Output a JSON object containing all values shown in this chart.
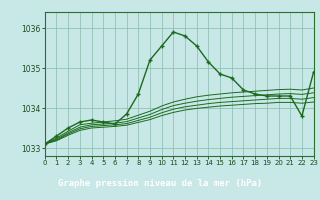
{
  "bg_color": "#c8e8e8",
  "line_color": "#1a6b1a",
  "grid_color": "#88bbaa",
  "footer_color": "#2d6e2d",
  "footer_text_color": "#ffffff",
  "xlim": [
    0,
    23
  ],
  "ylim": [
    1032.8,
    1036.4
  ],
  "yticks": [
    1033,
    1034,
    1035,
    1036
  ],
  "xticks": [
    0,
    1,
    2,
    3,
    4,
    5,
    6,
    7,
    8,
    9,
    10,
    11,
    12,
    13,
    14,
    15,
    16,
    17,
    18,
    19,
    20,
    21,
    22,
    23
  ],
  "xlabel": "Graphe pression niveau de la mer (hPa)",
  "series_main": [
    1033.1,
    1033.3,
    1033.5,
    1033.65,
    1033.7,
    1033.65,
    1033.6,
    1033.85,
    1034.35,
    1035.2,
    1035.55,
    1035.9,
    1035.8,
    1035.55,
    1035.15,
    1034.85,
    1034.75,
    1034.45,
    1034.35,
    1034.3,
    1034.3,
    1034.3,
    1033.8,
    1034.9
  ],
  "series_flat1": [
    1033.1,
    1033.25,
    1033.42,
    1033.58,
    1033.62,
    1033.65,
    1033.68,
    1033.72,
    1033.82,
    1033.92,
    1034.05,
    1034.15,
    1034.22,
    1034.28,
    1034.32,
    1034.35,
    1034.38,
    1034.4,
    1034.42,
    1034.44,
    1034.46,
    1034.47,
    1034.45,
    1034.5
  ],
  "series_flat2": [
    1033.1,
    1033.22,
    1033.38,
    1033.52,
    1033.58,
    1033.6,
    1033.62,
    1033.66,
    1033.75,
    1033.84,
    1033.96,
    1034.06,
    1034.12,
    1034.17,
    1034.21,
    1034.24,
    1034.27,
    1034.29,
    1034.31,
    1034.33,
    1034.35,
    1034.36,
    1034.34,
    1034.38
  ],
  "series_flat3": [
    1033.1,
    1033.2,
    1033.35,
    1033.48,
    1033.54,
    1033.56,
    1033.58,
    1033.61,
    1033.69,
    1033.77,
    1033.88,
    1033.97,
    1034.03,
    1034.07,
    1034.11,
    1034.14,
    1034.16,
    1034.18,
    1034.2,
    1034.22,
    1034.24,
    1034.24,
    1034.22,
    1034.26
  ],
  "series_flat4": [
    1033.1,
    1033.18,
    1033.32,
    1033.44,
    1033.5,
    1033.52,
    1033.54,
    1033.57,
    1033.64,
    1033.71,
    1033.81,
    1033.89,
    1033.95,
    1033.99,
    1034.02,
    1034.05,
    1034.07,
    1034.09,
    1034.11,
    1034.12,
    1034.14,
    1034.14,
    1034.12,
    1034.15
  ]
}
